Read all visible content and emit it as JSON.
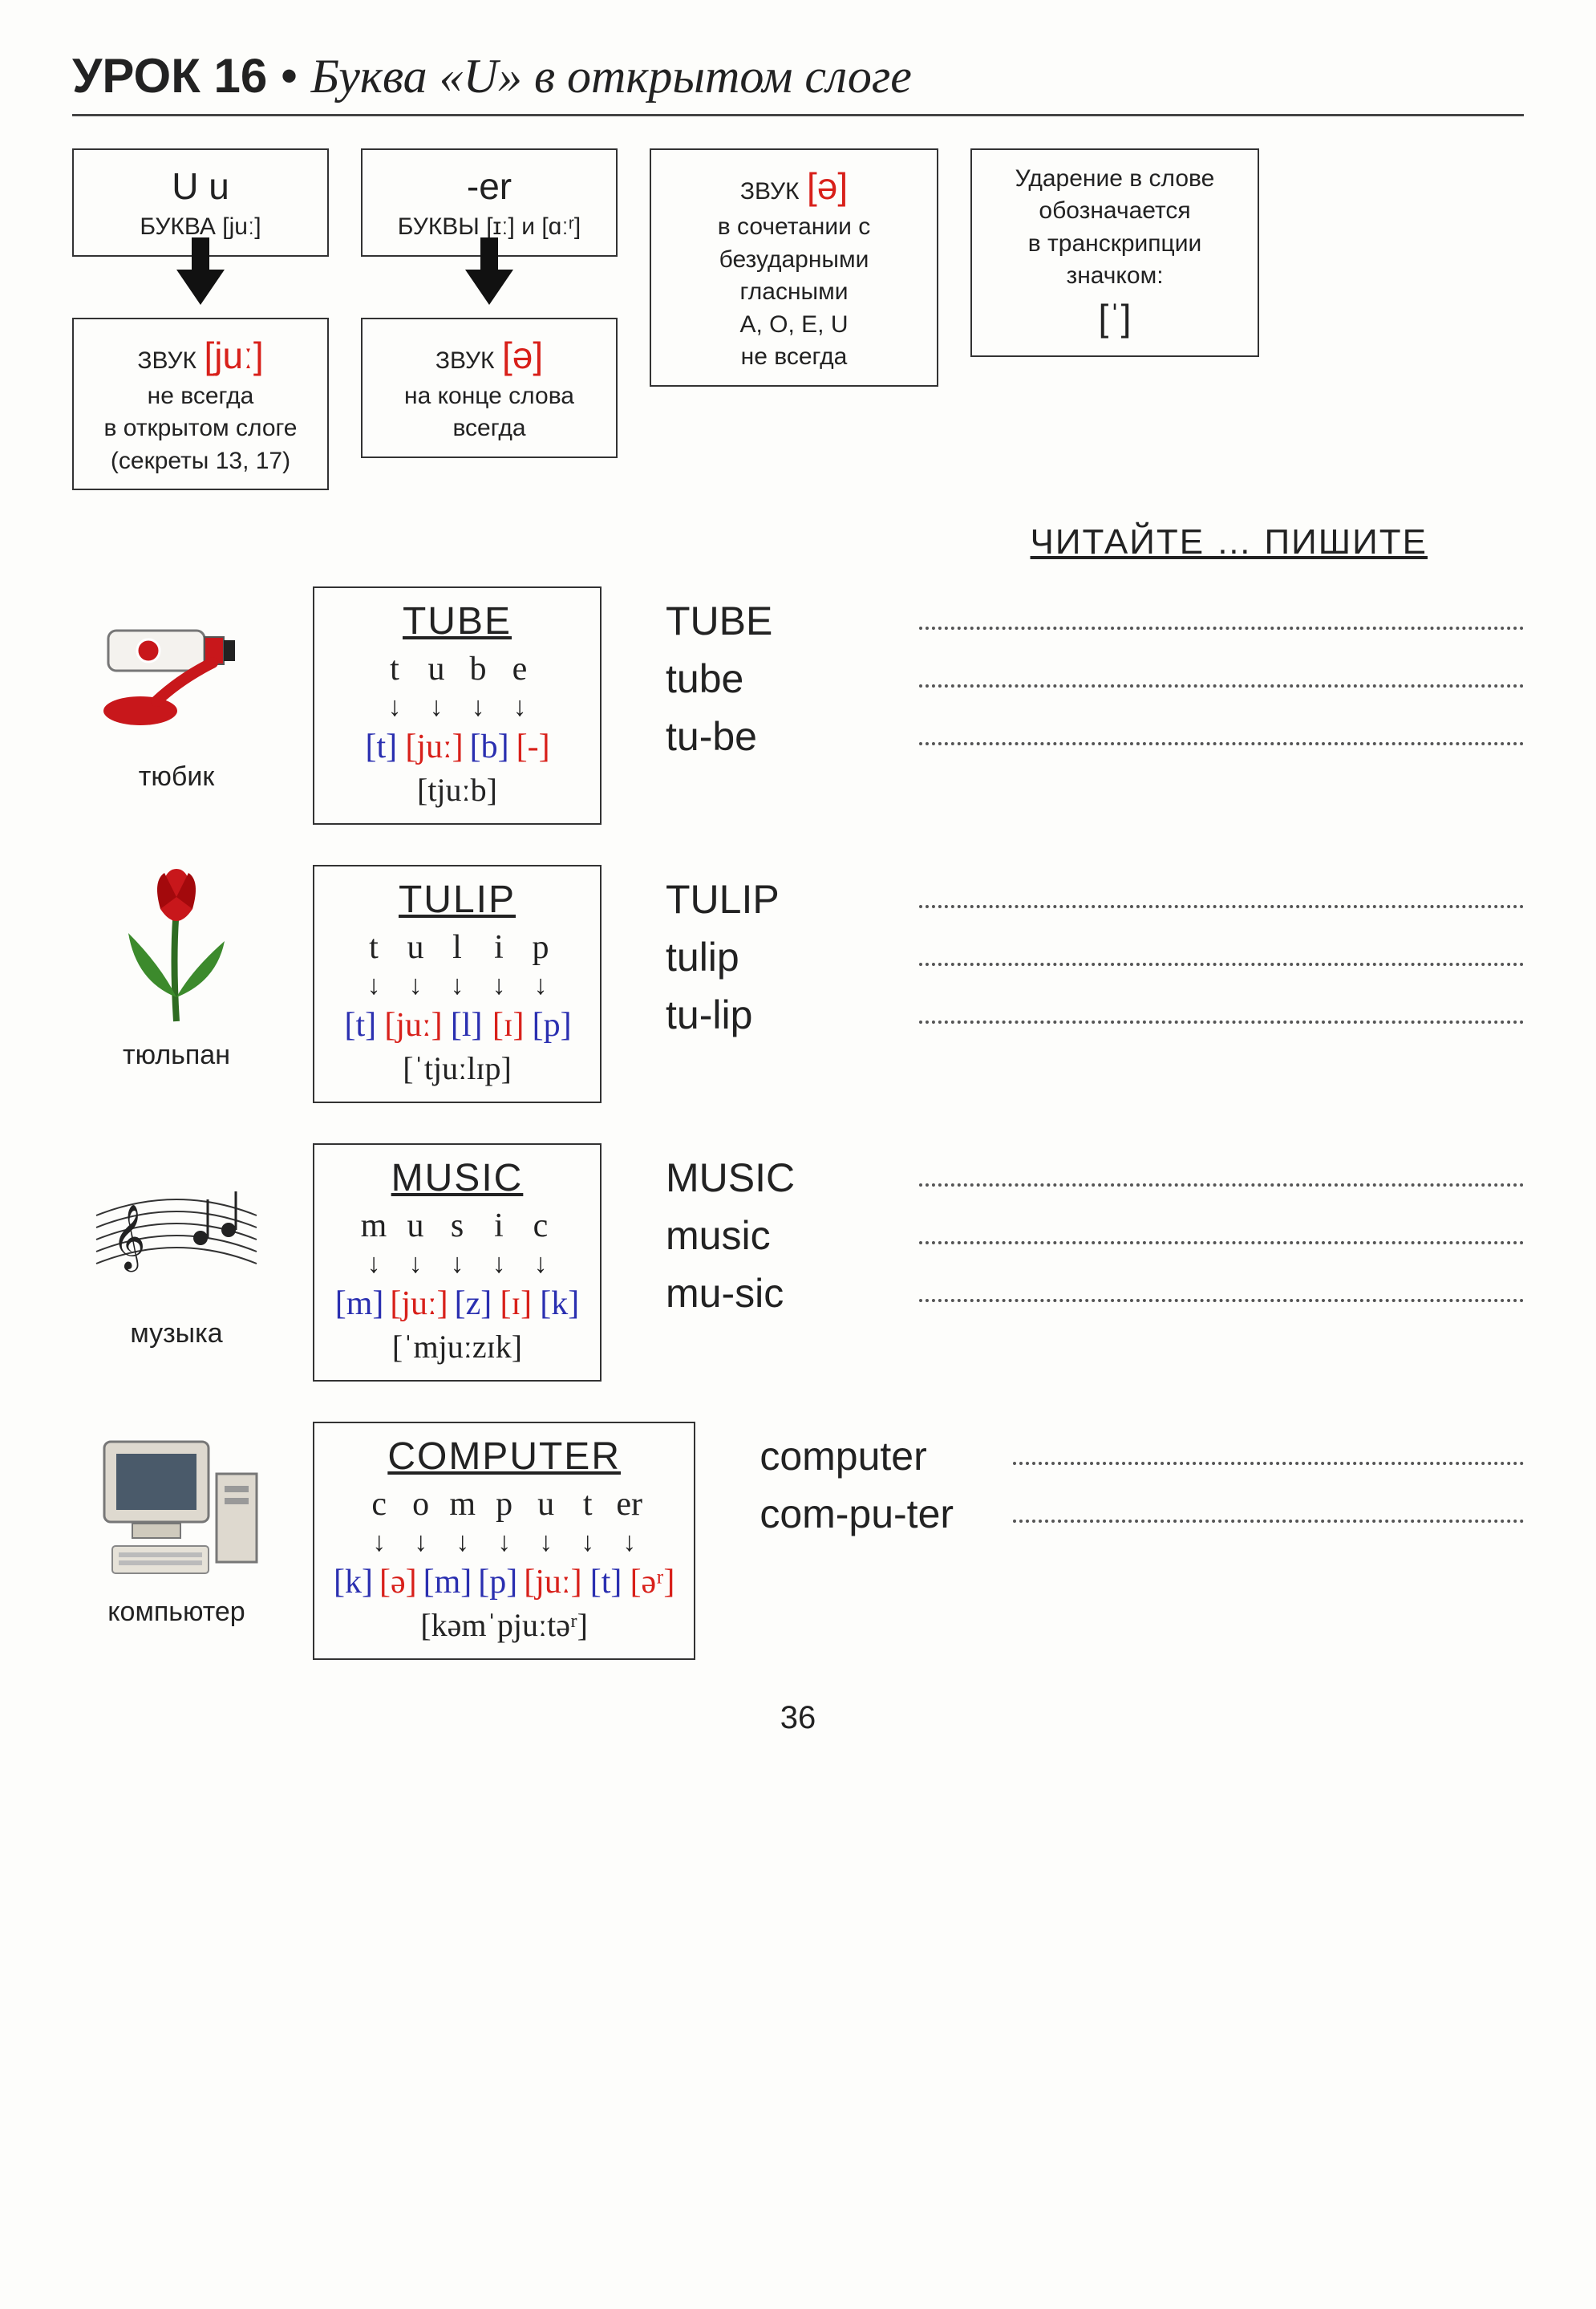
{
  "title": {
    "bold": "УРОК 16",
    "bullet": "•",
    "ital": "Буква «U» в открытом слоге"
  },
  "boxes": {
    "uu": {
      "line1": "U u",
      "line2": "БУКВА [juː]"
    },
    "er": {
      "line1": "-er",
      "line2_a": "БУКВЫ [ɪː]",
      "line2_b": "и",
      "line2_c": "[ɑːʳ]"
    },
    "ju": {
      "line1_a": "ЗВУК",
      "line1_b": "[juː]",
      "line2": "не всегда",
      "line3": "в открытом слоге",
      "line4": "(секреты 13, 17)"
    },
    "schwa": {
      "line1_a": "ЗВУК",
      "line1_b": "[ə]",
      "line2": "на конце слова",
      "line3": "всегда"
    },
    "combo": {
      "line1_a": "ЗВУК",
      "line1_b": "[ə]",
      "line2": "в сочетании с",
      "line3": "безударными",
      "line4": "гласными",
      "line5": "A, O, E, U",
      "line6": "не всегда"
    },
    "stress": {
      "line1": "Ударение в слове",
      "line2": "обозначается",
      "line3": "в транскрипции",
      "line4": "значком:",
      "line5": "[ˈ]"
    }
  },
  "section_heading": "ЧИТАЙТЕ … ПИШИТЕ",
  "colors": {
    "red": "#d8201a",
    "blue": "#2a2fb0",
    "black": "#222222"
  },
  "words": [
    {
      "id": "tube",
      "title": "TUBE",
      "caption": "тюбик",
      "letters": [
        "t",
        "u",
        "b",
        "e"
      ],
      "sounds": [
        {
          "t": "[t]",
          "c": "blue"
        },
        {
          "t": "[juː]",
          "c": "red"
        },
        {
          "t": "[b]",
          "c": "blue"
        },
        {
          "t": "[-]",
          "c": "red"
        }
      ],
      "ipa": "[tjuːb]",
      "write": [
        "TUBE",
        "tube",
        "tu-be"
      ]
    },
    {
      "id": "tulip",
      "title": "TULIP",
      "caption": "тюльпан",
      "letters": [
        "t",
        "u",
        "l",
        "i",
        "p"
      ],
      "sounds": [
        {
          "t": "[t]",
          "c": "blue"
        },
        {
          "t": "[juː]",
          "c": "red"
        },
        {
          "t": "[l]",
          "c": "blue"
        },
        {
          "t": "[ɪ]",
          "c": "red"
        },
        {
          "t": "[p]",
          "c": "blue"
        }
      ],
      "ipa": "[ˈtjuːlɪp]",
      "write": [
        "TULIP",
        "tulip",
        "tu-lip"
      ]
    },
    {
      "id": "music",
      "title": "MUSIC",
      "caption": "музыка",
      "letters": [
        "m",
        "u",
        "s",
        "i",
        "c"
      ],
      "sounds": [
        {
          "t": "[m]",
          "c": "blue"
        },
        {
          "t": "[juː]",
          "c": "red"
        },
        {
          "t": "[z]",
          "c": "blue"
        },
        {
          "t": "[ɪ]",
          "c": "red"
        },
        {
          "t": "[k]",
          "c": "blue"
        }
      ],
      "ipa": "[ˈmjuːzɪk]",
      "write": [
        "MUSIC",
        "music",
        "mu-sic"
      ]
    },
    {
      "id": "computer",
      "title": "COMPUTER",
      "caption": "компьютер",
      "letters": [
        "c",
        "o",
        "m",
        "p",
        "u",
        "t",
        "er"
      ],
      "sounds": [
        {
          "t": "[k]",
          "c": "blue"
        },
        {
          "t": "[ə]",
          "c": "red"
        },
        {
          "t": "[m]",
          "c": "blue"
        },
        {
          "t": "[p]",
          "c": "blue"
        },
        {
          "t": "[juː]",
          "c": "red"
        },
        {
          "t": "[t]",
          "c": "blue"
        },
        {
          "t": "[əʳ]",
          "c": "red"
        }
      ],
      "ipa": "[kəmˈpjuːtəʳ]",
      "write": [
        "computer",
        "com-pu-ter"
      ]
    }
  ],
  "page_number": "36"
}
